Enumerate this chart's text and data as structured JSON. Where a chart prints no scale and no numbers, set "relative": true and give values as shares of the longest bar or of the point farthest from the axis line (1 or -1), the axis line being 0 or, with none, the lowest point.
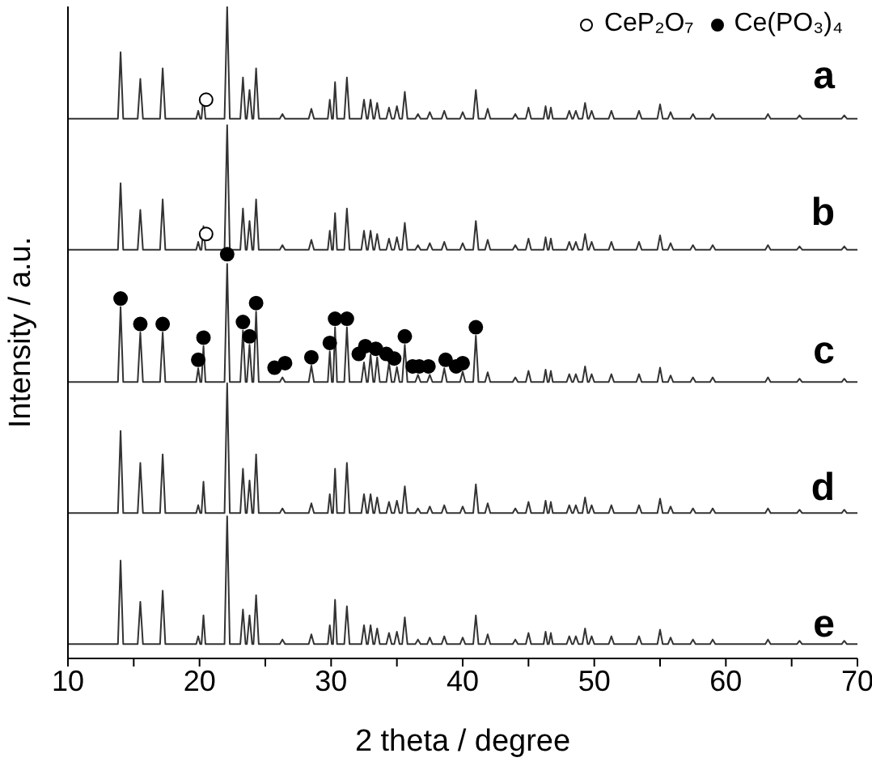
{
  "chart_data": {
    "type": "line",
    "xlabel": "2 theta / degree",
    "ylabel": "Intensity / a.u.",
    "relative": true,
    "marker": "none",
    "legend": "top right",
    "grid": false,
    "xlim": [
      10,
      70
    ],
    "xticks": [
      10,
      {
        "value": 15,
        "label": null
      },
      20,
      {
        "value": 25,
        "label": null
      },
      30,
      {
        "value": 35,
        "label": null
      },
      40,
      {
        "value": 45,
        "label": null
      },
      50,
      {
        "value": 55,
        "label": null
      },
      60,
      {
        "value": 65,
        "label": null
      },
      70
    ],
    "x": [
      10,
      13.8,
      14.0,
      14.2,
      15.3,
      15.5,
      15.7,
      17.0,
      17.2,
      17.4,
      19.75,
      19.9,
      20.05,
      20.15,
      20.3,
      20.45,
      21.9,
      22.1,
      22.3,
      23.1,
      23.3,
      23.5,
      23.6,
      23.8,
      24.0,
      24.1,
      24.3,
      24.5,
      26.1,
      26.3,
      26.5,
      28.3,
      28.5,
      28.7,
      29.75,
      29.9,
      30.05,
      30.15,
      30.3,
      30.45,
      31.0,
      31.2,
      31.4,
      32.3,
      32.5,
      32.7,
      32.8,
      33.0,
      33.2,
      33.3,
      33.5,
      33.7,
      34.2,
      34.4,
      34.6,
      34.8,
      35.0,
      35.2,
      35.4,
      35.6,
      35.8,
      36.4,
      36.6,
      36.8,
      37.3,
      37.5,
      37.7,
      38.4,
      38.6,
      38.8,
      39.8,
      40.0,
      40.2,
      40.8,
      41.0,
      41.2,
      41.7,
      41.9,
      42.1,
      43.8,
      44.0,
      44.2,
      44.8,
      45.0,
      45.2,
      46.15,
      46.3,
      46.45,
      46.55,
      46.7,
      46.85,
      47.9,
      48.1,
      48.3,
      48.4,
      48.6,
      48.8,
      49.1,
      49.3,
      49.5,
      49.6,
      49.8,
      50.0,
      51.1,
      51.3,
      51.5,
      53.2,
      53.4,
      53.6,
      54.8,
      55.0,
      55.2,
      55.6,
      55.8,
      56.0,
      57.3,
      57.5,
      57.7,
      58.8,
      59.0,
      59.2,
      63.0,
      63.2,
      63.4,
      65.4,
      65.6,
      65.8,
      68.8,
      69.0,
      69.2,
      70
    ],
    "series": [
      {
        "name": "a",
        "color": "#333333",
        "values": [
          0.828,
          0.828,
          0.93,
          0.828,
          0.828,
          0.889,
          0.828,
          0.828,
          0.905,
          0.828,
          0.828,
          0.84,
          0.828,
          0.828,
          0.864,
          0.828,
          0.828,
          1.0,
          0.828,
          0.828,
          0.891,
          0.828,
          0.828,
          0.872,
          0.828,
          0.828,
          0.905,
          0.828,
          0.828,
          0.835,
          0.828,
          0.828,
          0.843,
          0.828,
          0.828,
          0.857,
          0.828,
          0.828,
          0.884,
          0.828,
          0.828,
          0.891,
          0.828,
          0.828,
          0.857,
          0.828,
          0.828,
          0.857,
          0.828,
          0.828,
          0.852,
          0.828,
          0.828,
          0.845,
          0.828,
          0.828,
          0.847,
          0.828,
          0.828,
          0.869,
          0.828,
          0.828,
          0.835,
          0.828,
          0.828,
          0.838,
          0.828,
          0.828,
          0.84,
          0.828,
          0.828,
          0.838,
          0.828,
          0.828,
          0.872,
          0.828,
          0.828,
          0.843,
          0.828,
          0.828,
          0.835,
          0.828,
          0.828,
          0.845,
          0.828,
          0.828,
          0.847,
          0.828,
          0.828,
          0.845,
          0.828,
          0.828,
          0.84,
          0.828,
          0.828,
          0.84,
          0.828,
          0.828,
          0.852,
          0.828,
          0.828,
          0.84,
          0.828,
          0.828,
          0.84,
          0.828,
          0.828,
          0.84,
          0.828,
          0.828,
          0.85,
          0.828,
          0.828,
          0.838,
          0.828,
          0.828,
          0.835,
          0.828,
          0.828,
          0.835,
          0.828,
          0.828,
          0.835,
          0.828,
          0.828,
          0.833,
          0.828,
          0.828,
          0.833,
          0.828,
          0.828
        ]
      },
      {
        "name": "b",
        "color": "#333333",
        "values": [
          0.627,
          0.627,
          0.729,
          0.627,
          0.627,
          0.688,
          0.627,
          0.627,
          0.704,
          0.627,
          0.627,
          0.639,
          0.627,
          0.627,
          0.663,
          0.627,
          0.627,
          0.818,
          0.627,
          0.627,
          0.69,
          0.627,
          0.627,
          0.671,
          0.627,
          0.627,
          0.704,
          0.627,
          0.627,
          0.634,
          0.627,
          0.627,
          0.642,
          0.627,
          0.627,
          0.656,
          0.627,
          0.627,
          0.683,
          0.627,
          0.627,
          0.69,
          0.627,
          0.627,
          0.656,
          0.627,
          0.627,
          0.656,
          0.627,
          0.627,
          0.651,
          0.627,
          0.627,
          0.644,
          0.627,
          0.627,
          0.646,
          0.627,
          0.627,
          0.668,
          0.627,
          0.627,
          0.634,
          0.627,
          0.627,
          0.637,
          0.627,
          0.627,
          0.639,
          0.627,
          0.627,
          0.637,
          0.627,
          0.627,
          0.671,
          0.627,
          0.627,
          0.642,
          0.627,
          0.627,
          0.634,
          0.627,
          0.627,
          0.644,
          0.627,
          0.627,
          0.646,
          0.627,
          0.627,
          0.644,
          0.627,
          0.627,
          0.639,
          0.627,
          0.627,
          0.639,
          0.627,
          0.627,
          0.651,
          0.627,
          0.627,
          0.639,
          0.627,
          0.627,
          0.639,
          0.627,
          0.627,
          0.639,
          0.627,
          0.627,
          0.649,
          0.627,
          0.627,
          0.637,
          0.627,
          0.627,
          0.634,
          0.627,
          0.627,
          0.634,
          0.627,
          0.627,
          0.634,
          0.627,
          0.627,
          0.632,
          0.627,
          0.627,
          0.632,
          0.627,
          0.627
        ]
      },
      {
        "name": "c",
        "color": "#333333",
        "values": [
          0.424,
          0.424,
          0.539,
          0.424,
          0.424,
          0.5,
          0.424,
          0.424,
          0.5,
          0.424,
          0.424,
          0.445,
          0.424,
          0.424,
          0.479,
          0.424,
          0.424,
          0.605,
          0.424,
          0.424,
          0.503,
          0.424,
          0.424,
          0.481,
          0.424,
          0.424,
          0.532,
          0.424,
          0.424,
          0.431,
          0.424,
          0.424,
          0.449,
          0.424,
          0.424,
          0.471,
          0.424,
          0.424,
          0.508,
          0.424,
          0.424,
          0.508,
          0.424,
          0.424,
          0.454,
          0.424,
          0.424,
          0.466,
          0.424,
          0.424,
          0.462,
          0.424,
          0.424,
          0.454,
          0.424,
          0.424,
          0.447,
          0.424,
          0.424,
          0.481,
          0.424,
          0.424,
          0.435,
          0.424,
          0.424,
          0.435,
          0.424,
          0.424,
          0.445,
          0.424,
          0.424,
          0.44,
          0.424,
          0.424,
          0.495,
          0.424,
          0.424,
          0.439,
          0.424,
          0.424,
          0.431,
          0.424,
          0.424,
          0.441,
          0.424,
          0.424,
          0.443,
          0.424,
          0.424,
          0.441,
          0.424,
          0.424,
          0.436,
          0.424,
          0.424,
          0.436,
          0.424,
          0.424,
          0.448,
          0.424,
          0.424,
          0.436,
          0.424,
          0.424,
          0.436,
          0.424,
          0.424,
          0.436,
          0.424,
          0.424,
          0.446,
          0.424,
          0.424,
          0.434,
          0.424,
          0.424,
          0.431,
          0.424,
          0.424,
          0.431,
          0.424,
          0.424,
          0.431,
          0.424,
          0.424,
          0.429,
          0.424,
          0.424,
          0.429,
          0.424,
          0.424
        ]
      },
      {
        "name": "d",
        "color": "#333333",
        "values": [
          0.223,
          0.223,
          0.349,
          0.223,
          0.223,
          0.3,
          0.223,
          0.223,
          0.313,
          0.223,
          0.223,
          0.235,
          0.223,
          0.223,
          0.271,
          0.223,
          0.223,
          0.422,
          0.223,
          0.223,
          0.291,
          0.223,
          0.223,
          0.273,
          0.223,
          0.223,
          0.313,
          0.223,
          0.223,
          0.23,
          0.223,
          0.223,
          0.238,
          0.223,
          0.223,
          0.252,
          0.223,
          0.223,
          0.291,
          0.223,
          0.223,
          0.3,
          0.223,
          0.223,
          0.252,
          0.223,
          0.223,
          0.252,
          0.223,
          0.223,
          0.247,
          0.223,
          0.223,
          0.24,
          0.223,
          0.223,
          0.242,
          0.223,
          0.223,
          0.264,
          0.223,
          0.223,
          0.23,
          0.223,
          0.223,
          0.233,
          0.223,
          0.223,
          0.235,
          0.223,
          0.223,
          0.233,
          0.223,
          0.223,
          0.267,
          0.223,
          0.223,
          0.238,
          0.223,
          0.223,
          0.23,
          0.223,
          0.223,
          0.24,
          0.223,
          0.223,
          0.242,
          0.223,
          0.223,
          0.24,
          0.223,
          0.223,
          0.235,
          0.223,
          0.223,
          0.235,
          0.223,
          0.223,
          0.247,
          0.223,
          0.223,
          0.235,
          0.223,
          0.223,
          0.235,
          0.223,
          0.223,
          0.235,
          0.223,
          0.223,
          0.245,
          0.223,
          0.223,
          0.233,
          0.223,
          0.223,
          0.23,
          0.223,
          0.223,
          0.23,
          0.223,
          0.223,
          0.23,
          0.223,
          0.223,
          0.228,
          0.223,
          0.223,
          0.228,
          0.223,
          0.223
        ]
      },
      {
        "name": "e",
        "color": "#333333",
        "values": [
          0.022,
          0.022,
          0.15,
          0.022,
          0.022,
          0.087,
          0.022,
          0.022,
          0.104,
          0.022,
          0.022,
          0.034,
          0.022,
          0.022,
          0.066,
          0.022,
          0.022,
          0.218,
          0.022,
          0.022,
          0.075,
          0.022,
          0.022,
          0.066,
          0.022,
          0.022,
          0.097,
          0.022,
          0.022,
          0.029,
          0.022,
          0.022,
          0.037,
          0.022,
          0.022,
          0.051,
          0.022,
          0.022,
          0.09,
          0.022,
          0.022,
          0.08,
          0.022,
          0.022,
          0.051,
          0.022,
          0.022,
          0.051,
          0.022,
          0.022,
          0.046,
          0.022,
          0.022,
          0.039,
          0.022,
          0.022,
          0.041,
          0.022,
          0.022,
          0.063,
          0.022,
          0.022,
          0.029,
          0.022,
          0.022,
          0.032,
          0.022,
          0.022,
          0.034,
          0.022,
          0.022,
          0.032,
          0.022,
          0.022,
          0.066,
          0.022,
          0.022,
          0.037,
          0.022,
          0.022,
          0.029,
          0.022,
          0.022,
          0.039,
          0.022,
          0.022,
          0.041,
          0.022,
          0.022,
          0.039,
          0.022,
          0.022,
          0.034,
          0.022,
          0.022,
          0.034,
          0.022,
          0.022,
          0.046,
          0.022,
          0.022,
          0.034,
          0.022,
          0.022,
          0.034,
          0.022,
          0.022,
          0.034,
          0.022,
          0.022,
          0.044,
          0.022,
          0.022,
          0.032,
          0.022,
          0.022,
          0.029,
          0.022,
          0.022,
          0.029,
          0.022,
          0.022,
          0.029,
          0.022,
          0.022,
          0.027,
          0.022,
          0.022,
          0.027,
          0.022,
          0.022
        ]
      },
      {
        "name": "CeP₂O₇",
        "type": "scatter",
        "marker": "circle",
        "color": "#ffffff",
        "x": [
          20.5,
          20.5
        ],
        "values": [
          0.857,
          0.651
        ]
      },
      {
        "name": "Ce(PO₃)₄",
        "type": "scatter",
        "marker": "circle",
        "color": "#000000",
        "x": [
          14.0,
          15.5,
          17.2,
          19.9,
          20.3,
          22.1,
          23.3,
          23.8,
          24.3,
          25.7,
          26.5,
          28.5,
          29.9,
          30.3,
          31.2,
          32.1,
          32.6,
          33.4,
          34.2,
          34.8,
          35.6,
          36.2,
          36.7,
          37.4,
          38.7,
          39.5,
          40.0,
          41.0
        ],
        "values": [
          0.552,
          0.513,
          0.513,
          0.458,
          0.492,
          0.62,
          0.516,
          0.494,
          0.545,
          0.446,
          0.453,
          0.462,
          0.484,
          0.521,
          0.521,
          0.467,
          0.479,
          0.475,
          0.467,
          0.46,
          0.494,
          0.448,
          0.448,
          0.448,
          0.458,
          0.448,
          0.453,
          0.508
        ]
      }
    ]
  }
}
